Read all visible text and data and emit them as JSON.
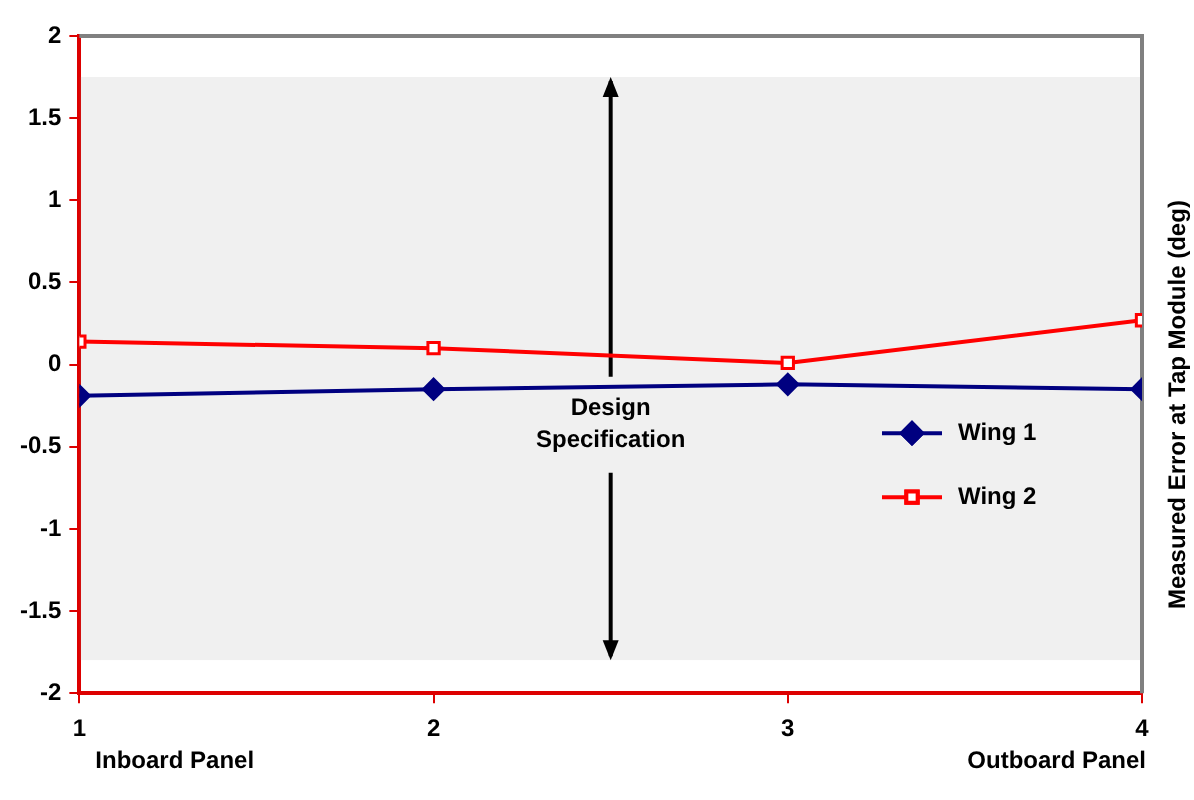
{
  "chart_data": {
    "type": "line",
    "ylabel": "Measured Error at Tap Module (deg)",
    "x": [
      1,
      2,
      3,
      4
    ],
    "xlim": [
      1,
      4
    ],
    "xticks": [
      1,
      2,
      3,
      4
    ],
    "ylim": [
      -2,
      2
    ],
    "yticks": [
      -2,
      -1.5,
      -1,
      -0.5,
      0,
      0.5,
      1,
      1.5,
      2
    ],
    "series": [
      {
        "name": "Wing 1",
        "color": "#000080",
        "marker": "diamond",
        "values": [
          -0.19,
          -0.15,
          -0.12,
          -0.15
        ]
      },
      {
        "name": "Wing 2",
        "color": "#ff0000",
        "marker": "square",
        "values": [
          0.14,
          0.1,
          0.01,
          0.27
        ]
      }
    ],
    "bands": [
      {
        "axis": "y",
        "from": -1.8,
        "to": 1.75,
        "label": "Design Specification",
        "color": "#808080"
      }
    ],
    "annotations": [
      "Inboard Panel",
      "Outboard Panel"
    ],
    "legend": "bottom right",
    "grid": false,
    "line_style": "solid"
  }
}
